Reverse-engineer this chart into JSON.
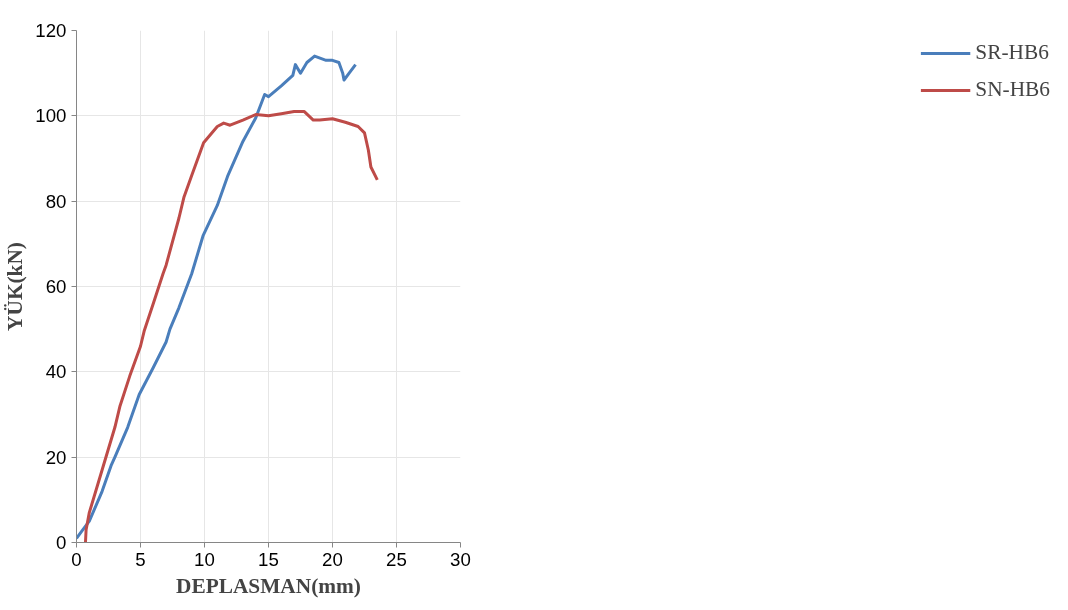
{
  "chart_data": {
    "type": "line",
    "xlabel": "DEPLASMAN(mm)",
    "ylabel": "YÜK(kN)",
    "xlim": [
      0,
      30
    ],
    "xticks": [
      0,
      5,
      10,
      15,
      20,
      25,
      30
    ],
    "ylim": [
      0,
      120
    ],
    "yticks": [
      0,
      20,
      40,
      60,
      80,
      100,
      120
    ],
    "grid": true,
    "legend": "right",
    "marker": "none",
    "line_style": "solid",
    "series": [
      {
        "name": "SR-HB6",
        "color": "#4a7ebb",
        "x": [
          0,
          0.5,
          1,
          2,
          2.7,
          3,
          4,
          4.9,
          6,
          7,
          7.3,
          8,
          9,
          9.9,
          11,
          11.8,
          13,
          14,
          14.7,
          15,
          16,
          16.9,
          17.1,
          17.5,
          18,
          18.6,
          19.5,
          20,
          20.5,
          20.8,
          20.9,
          21.3,
          21.8
        ],
        "values": [
          1,
          3,
          5,
          12,
          18,
          20,
          27,
          34.7,
          41,
          47,
          50,
          55,
          63,
          72,
          79,
          85.8,
          94,
          99.5,
          105,
          104.5,
          107,
          109.5,
          112,
          110,
          112.5,
          114,
          113,
          113,
          112.5,
          110,
          108.4,
          110,
          112
        ]
      },
      {
        "name": "SN-HB6",
        "color": "#be4b48",
        "x": [
          0.7,
          0.75,
          1,
          2,
          3,
          3.4,
          4.16,
          5,
          5.3,
          6,
          6.76,
          7,
          8,
          8.4,
          9,
          9.93,
          11,
          11.5,
          12,
          13,
          14,
          15,
          16,
          17,
          17.8,
          18.5,
          19,
          20,
          21,
          22,
          22.5,
          22.8,
          23,
          23.5
        ],
        "values": [
          0,
          3,
          7,
          17,
          27,
          32,
          39,
          46,
          49.7,
          56,
          63,
          65,
          76,
          81,
          86,
          93.7,
          97.5,
          98.3,
          97.8,
          99,
          100.3,
          100,
          100.5,
          101,
          101,
          99,
          99,
          99.3,
          98.5,
          97.5,
          96,
          92,
          88,
          85
        ]
      }
    ]
  }
}
